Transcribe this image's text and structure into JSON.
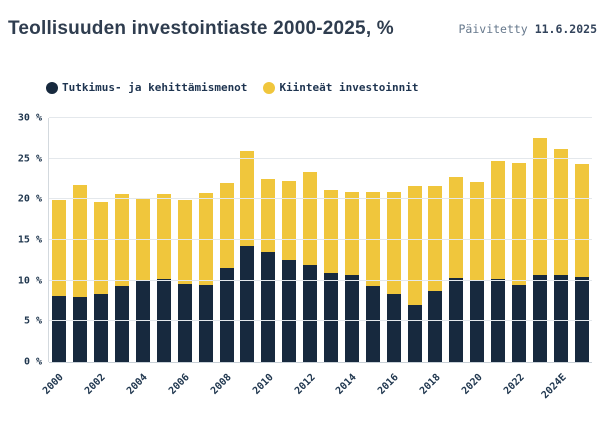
{
  "header": {
    "title": "Teollisuuden investointiaste 2000-2025, %",
    "updated_label": "Päivitetty",
    "updated_date": "11.6.2025"
  },
  "colors": {
    "rd_navy": "#17293e",
    "fixed_yellow": "#f0c63c",
    "title_text": "#2f3d4f",
    "gridline": "#e4e8ec"
  },
  "legend": {
    "items": [
      {
        "label": "Tutkimus- ja kehittämismenot",
        "color": "#17293e"
      },
      {
        "label": "Kiinteät investoinnit",
        "color": "#f0c63c"
      }
    ]
  },
  "chart_data": {
    "type": "bar",
    "stacked": true,
    "title": "Teollisuuden investointiaste 2000-2025, %",
    "xlabel": "",
    "ylabel": "",
    "ylim": [
      0,
      30
    ],
    "ytick_step": 5,
    "ytick_suffix": " %",
    "xtick_every": 2,
    "grid": true,
    "legend_position": "top-left",
    "categories": [
      "2000",
      "2001",
      "2002",
      "2003",
      "2004",
      "2005",
      "2006",
      "2007",
      "2008",
      "2009",
      "2010",
      "2011",
      "2012",
      "2013",
      "2014",
      "2015",
      "2016",
      "2017",
      "2018",
      "2019",
      "2020",
      "2021",
      "2022",
      "2023",
      "2024E",
      "2025E"
    ],
    "series": [
      {
        "name": "Tutkimus- ja kehittämismenot",
        "color": "#17293e",
        "values": [
          8.1,
          8.0,
          8.4,
          9.3,
          10.0,
          10.2,
          9.6,
          9.5,
          11.5,
          14.3,
          13.5,
          12.5,
          11.9,
          11.0,
          10.7,
          9.3,
          8.4,
          7.0,
          8.7,
          10.3,
          10.0,
          10.2,
          9.5,
          10.7,
          10.7,
          10.4
        ]
      },
      {
        "name": "Kiinteät investoinnit",
        "color": "#f0c63c",
        "values": [
          11.8,
          13.8,
          11.3,
          11.3,
          10.2,
          10.5,
          10.3,
          11.3,
          10.5,
          11.6,
          9.0,
          9.8,
          11.5,
          10.2,
          10.2,
          11.6,
          12.5,
          14.6,
          13.0,
          12.5,
          12.1,
          14.5,
          15.0,
          16.8,
          15.5,
          14.0
        ]
      }
    ],
    "totals": [
      19.9,
      21.8,
      19.7,
      20.6,
      20.2,
      20.7,
      19.9,
      20.8,
      22.0,
      25.9,
      22.5,
      22.3,
      23.4,
      21.2,
      20.9,
      20.9,
      20.9,
      21.6,
      21.7,
      22.8,
      22.1,
      24.7,
      24.5,
      27.5,
      26.2,
      24.4
    ]
  }
}
